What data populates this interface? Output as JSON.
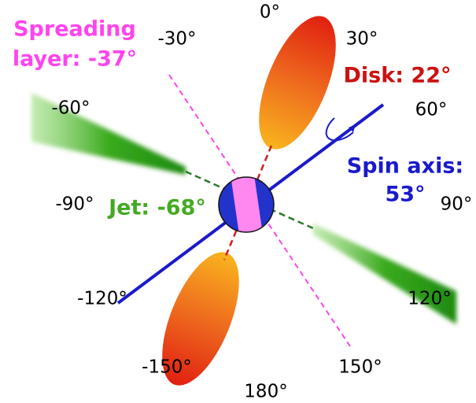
{
  "angle_labels": [
    "0°",
    "30°",
    "60°",
    "90°",
    "120°",
    "150°",
    "180°",
    "-150°",
    "-120°",
    "-90°",
    "-60°",
    "-30°"
  ],
  "annotations": {
    "spreading_layer": [
      "Spreading",
      "layer: -37°"
    ],
    "disk": "Disk: 22°",
    "spin_axis": [
      "Spin axis:",
      "53°"
    ],
    "jet": "Jet: -68°"
  }
}
